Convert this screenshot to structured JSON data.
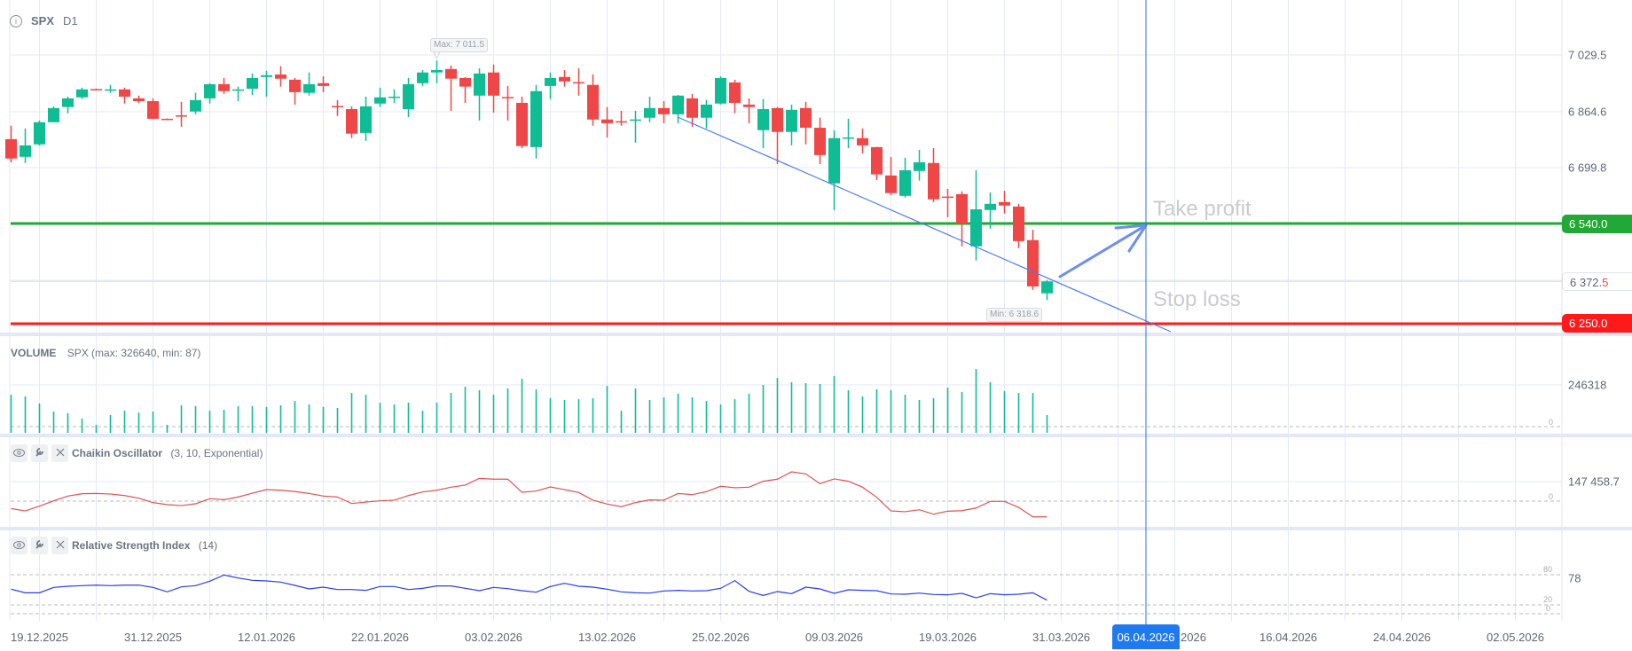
{
  "header": {
    "symbol": "SPX",
    "timeframe": "D1"
  },
  "colors": {
    "up": "#0fbd95",
    "down": "#ef4747",
    "take_profit": "#22a834",
    "stop_loss": "#ff1a1a",
    "trend": "#4a7df0",
    "crosshair": "#2f6ff0",
    "chaikin": "#e05252",
    "rsi": "#2b3cf0"
  },
  "price_axis": {
    "labels": [
      "7 029.5",
      "6 864.6",
      "6 699.8"
    ],
    "current_price_main": "6 372.",
    "current_price_last_digit": "5",
    "take_profit_tag": "6 540.0",
    "stop_loss_tag": "6 250.0"
  },
  "annotations": {
    "take_profit": "Take profit",
    "stop_loss": "Stop loss",
    "max_label": "Max: 7 011.5",
    "min_label": "Min: 6 318.6"
  },
  "levels": {
    "take_profit": 6540.0,
    "stop_loss": 6250.0,
    "current": 6372.5
  },
  "volume_pane": {
    "title": "VOLUME",
    "subtitle": "SPX (max: 326640, min: 87)",
    "axis_label": "246318",
    "zero_label": "0"
  },
  "chaikin_pane": {
    "title": "Chaikin Oscillator",
    "params": "(3, 10, Exponential)",
    "axis_label": "147 458.7",
    "zero_label": "0"
  },
  "rsi_pane": {
    "title": "Relative Strength Index",
    "params": "(14)",
    "axis_label": "78",
    "level_80": "80",
    "level_20": "20",
    "level_0": "0"
  },
  "pane_buttons": {
    "visibility": "eye-icon",
    "settings": "wrench-icon",
    "remove": "close-icon"
  },
  "crosshair_date": "06.04.2026",
  "chart_data": {
    "type": "candlestick",
    "x_labels": [
      {
        "index": 2,
        "label": "19.12.2025"
      },
      {
        "index": 10,
        "label": "31.12.2025"
      },
      {
        "index": 18,
        "label": "12.01.2026"
      },
      {
        "index": 26,
        "label": "22.01.2026"
      },
      {
        "index": 34,
        "label": "03.02.2026"
      },
      {
        "index": 42,
        "label": "13.02.2026"
      },
      {
        "index": 50,
        "label": "25.02.2026"
      },
      {
        "index": 58,
        "label": "09.03.2026"
      },
      {
        "index": 66,
        "label": "19.03.2026"
      },
      {
        "index": 74,
        "label": "31.03.2026"
      },
      {
        "index": 82,
        "label": "2026"
      },
      {
        "index": 90,
        "label": "16.04.2026"
      },
      {
        "index": 98,
        "label": "24.04.2026"
      },
      {
        "index": 106,
        "label": "02.05.2026"
      }
    ],
    "ohlc": [
      [
        6784,
        6823,
        6717,
        6728
      ],
      [
        6733,
        6815,
        6715,
        6766
      ],
      [
        6769,
        6838,
        6766,
        6833
      ],
      [
        6833,
        6879,
        6833,
        6874
      ],
      [
        6877,
        6907,
        6859,
        6902
      ],
      [
        6905,
        6933,
        6900,
        6928
      ],
      [
        6929,
        6930,
        6926,
        6927
      ],
      [
        6927,
        6941,
        6918,
        6928
      ],
      [
        6928,
        6933,
        6887,
        6907
      ],
      [
        6902,
        6910,
        6889,
        6894
      ],
      [
        6894,
        6902,
        6842,
        6843
      ],
      [
        6843,
        6844,
        6841,
        6842
      ],
      [
        6853,
        6892,
        6820,
        6852
      ],
      [
        6864,
        6918,
        6856,
        6897
      ],
      [
        6902,
        6946,
        6887,
        6943
      ],
      [
        6943,
        6961,
        6915,
        6923
      ],
      [
        6927,
        6936,
        6894,
        6928
      ],
      [
        6930,
        6974,
        6912,
        6961
      ],
      [
        6964,
        6982,
        6907,
        6969
      ],
      [
        6971,
        6995,
        6936,
        6959
      ],
      [
        6956,
        6961,
        6884,
        6920
      ],
      [
        6918,
        6977,
        6910,
        6943
      ],
      [
        6946,
        6966,
        6920,
        6938
      ],
      [
        6880,
        6897,
        6851,
        6879
      ],
      [
        6871,
        6879,
        6787,
        6800
      ],
      [
        6802,
        6907,
        6779,
        6879
      ],
      [
        6887,
        6933,
        6877,
        6905
      ],
      [
        6906,
        6928,
        6889,
        6907
      ],
      [
        6871,
        6961,
        6848,
        6943
      ],
      [
        6946,
        6984,
        6938,
        6977
      ],
      [
        6977,
        7011.5,
        6946,
        6984
      ],
      [
        6987,
        6997,
        6866,
        6959
      ],
      [
        6961,
        6964,
        6889,
        6936
      ],
      [
        6910,
        6989,
        6838,
        6974
      ],
      [
        6977,
        7000,
        6861,
        6910
      ],
      [
        6906,
        6938,
        6838,
        6905
      ],
      [
        6889,
        6907,
        6758,
        6764
      ],
      [
        6761,
        6941,
        6728,
        6923
      ],
      [
        6938,
        6977,
        6900,
        6961
      ],
      [
        6964,
        6984,
        6936,
        6951
      ],
      [
        6949,
        6989,
        6910,
        6948
      ],
      [
        6941,
        6971,
        6823,
        6841
      ],
      [
        6841,
        6877,
        6789,
        6830
      ],
      [
        6836,
        6866,
        6823,
        6835
      ],
      [
        6840,
        6866,
        6774,
        6841
      ],
      [
        6846,
        6907,
        6833,
        6874
      ],
      [
        6874,
        6894,
        6830,
        6856
      ],
      [
        6856,
        6912,
        6830,
        6910
      ],
      [
        6902,
        6915,
        6820,
        6846
      ],
      [
        6846,
        6897,
        6815,
        6884
      ],
      [
        6887,
        6966,
        6884,
        6961
      ],
      [
        6948,
        6956,
        6859,
        6889
      ],
      [
        6884,
        6902,
        6830,
        6877
      ],
      [
        6810,
        6900,
        6758,
        6871
      ],
      [
        6874,
        6877,
        6712,
        6805
      ],
      [
        6805,
        6884,
        6766,
        6869
      ],
      [
        6874,
        6892,
        6769,
        6817
      ],
      [
        6817,
        6846,
        6712,
        6738
      ],
      [
        6656,
        6810,
        6579,
        6787
      ],
      [
        6788,
        6843,
        6758,
        6789
      ],
      [
        6787,
        6815,
        6743,
        6766
      ],
      [
        6761,
        6762,
        6666,
        6682
      ],
      [
        6679,
        6733,
        6622,
        6628
      ],
      [
        6620,
        6730,
        6615,
        6694
      ],
      [
        6692,
        6753,
        6664,
        6717
      ],
      [
        6715,
        6758,
        6602,
        6610
      ],
      [
        6618,
        6640,
        6558,
        6617
      ],
      [
        6625,
        6633,
        6474,
        6540
      ],
      [
        6474,
        6694,
        6433,
        6581
      ],
      [
        6579,
        6630,
        6525,
        6597
      ],
      [
        6602,
        6635,
        6569,
        6592
      ],
      [
        6589,
        6597,
        6469,
        6489
      ],
      [
        6492,
        6522,
        6348,
        6358
      ],
      [
        6338,
        6376,
        6318.6,
        6372.5
      ]
    ],
    "volume": [
      195000,
      186000,
      150000,
      109000,
      100000,
      73000,
      41000,
      91000,
      113000,
      104000,
      109000,
      41000,
      141000,
      136000,
      113000,
      118000,
      136000,
      136000,
      132000,
      141000,
      163000,
      145000,
      132000,
      127000,
      204000,
      195000,
      154000,
      145000,
      154000,
      113000,
      154000,
      204000,
      236000,
      218000,
      195000,
      227000,
      277000,
      222000,
      177000,
      168000,
      172000,
      177000,
      240000,
      113000,
      227000,
      168000,
      181000,
      200000,
      181000,
      163000,
      145000,
      172000,
      200000,
      245000,
      281000,
      259000,
      254000,
      250000,
      290000,
      218000,
      186000,
      222000,
      218000,
      195000,
      168000,
      177000,
      231000,
      209000,
      326640,
      259000,
      213000,
      204000,
      204000,
      91000
    ],
    "chaikin": [
      -56000,
      -74000,
      -38000,
      2000,
      38000,
      56000,
      58000,
      54000,
      42000,
      22000,
      -11000,
      -27000,
      -34000,
      -20000,
      18000,
      11000,
      31000,
      60000,
      87000,
      82000,
      72000,
      58000,
      38000,
      31000,
      -18000,
      -7000,
      2000,
      7000,
      42000,
      69000,
      82000,
      105000,
      121000,
      172000,
      166000,
      166000,
      67000,
      76000,
      107000,
      87000,
      65000,
      7000,
      -22000,
      -42000,
      -11000,
      9000,
      7000,
      58000,
      49000,
      72000,
      112000,
      101000,
      105000,
      150000,
      166000,
      221000,
      206000,
      132000,
      168000,
      150000,
      105000,
      29000,
      -74000,
      -80000,
      -65000,
      -99000,
      -76000,
      -72000,
      -52000,
      -2000,
      -2000,
      -47000,
      -119000,
      -119000
    ],
    "rsi": [
      50.3,
      43.0,
      43.0,
      54.0,
      56.4,
      57.6,
      58.7,
      57.6,
      58.7,
      58.7,
      54.0,
      44.9,
      55.1,
      57.6,
      66.7,
      79.4,
      73.3,
      68.5,
      67.3,
      64.9,
      58.2,
      50.9,
      54.5,
      49.7,
      49.7,
      47.9,
      55.8,
      55.8,
      49.7,
      52.1,
      57.0,
      57.0,
      52.1,
      47.3,
      54.0,
      51.5,
      47.3,
      44.2,
      55.8,
      62.4,
      56.4,
      54.5,
      50.3,
      44.9,
      43.0,
      42.4,
      46.7,
      47.9,
      46.7,
      47.3,
      52.1,
      67.9,
      46.1,
      37.6,
      45.5,
      41.2,
      54.5,
      50.9,
      41.8,
      49.1,
      47.9,
      47.3,
      40.6,
      40.0,
      42.4,
      39.4,
      38.8,
      41.8,
      32.7,
      41.2,
      38.8,
      40.0,
      43.0,
      27.9
    ],
    "price_range": [
      6220,
      7080
    ],
    "rsi_levels": [
      80,
      20,
      0
    ]
  }
}
